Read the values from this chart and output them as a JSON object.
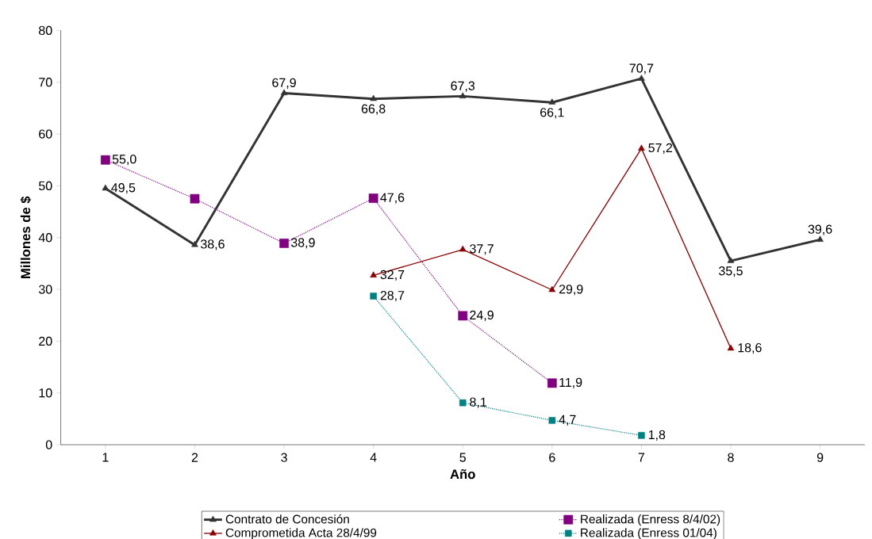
{
  "chart_data": {
    "type": "line",
    "xlabel": "Año",
    "ylabel": "Millones de $",
    "categories": [
      "1",
      "2",
      "3",
      "4",
      "5",
      "6",
      "7",
      "8",
      "9"
    ],
    "ylim": [
      0,
      80
    ],
    "yticks": [
      0,
      10,
      20,
      30,
      40,
      50,
      60,
      70,
      80
    ],
    "legend": "bottom",
    "series": [
      {
        "name": "Contrato de Concesión",
        "color": "#333333",
        "marker": "triangle",
        "line_style": "solid",
        "values": [
          49.5,
          38.6,
          67.9,
          66.8,
          67.3,
          66.1,
          70.7,
          35.5,
          39.6
        ],
        "value_labels": [
          "49,5",
          "38,6",
          "67,9",
          "66,8",
          "67,3",
          "66,1",
          "70,7",
          "35,5",
          "39,6"
        ]
      },
      {
        "name": "Realizada (Enress 8/4/02)",
        "color": "#800080",
        "marker": "square",
        "line_style": "dotted",
        "values": [
          55.0,
          47.5,
          38.9,
          47.6,
          24.9,
          11.9,
          null,
          null,
          null
        ],
        "value_labels": [
          "55,0",
          null,
          "38,9",
          "47,6",
          "24,9",
          "11,9",
          null,
          null,
          null
        ]
      },
      {
        "name": "Comprometida Acta 28/4/99",
        "color": "#8b0000",
        "marker": "triangle",
        "line_style": "solid",
        "values": [
          null,
          null,
          null,
          32.7,
          37.7,
          29.9,
          57.2,
          18.6,
          null
        ],
        "value_labels": [
          null,
          null,
          null,
          "32,7",
          "37,7",
          "29,9",
          "57,2",
          "18,6",
          null
        ]
      },
      {
        "name": "Realizada (Enress 01/04)",
        "color": "#008080",
        "marker": "square",
        "line_style": "dotted",
        "values": [
          null,
          null,
          null,
          28.7,
          8.1,
          4.7,
          1.8,
          null,
          null
        ],
        "value_labels": [
          null,
          null,
          null,
          "28,7",
          "8,1",
          "4,7",
          "1,8",
          null,
          null
        ]
      }
    ]
  }
}
